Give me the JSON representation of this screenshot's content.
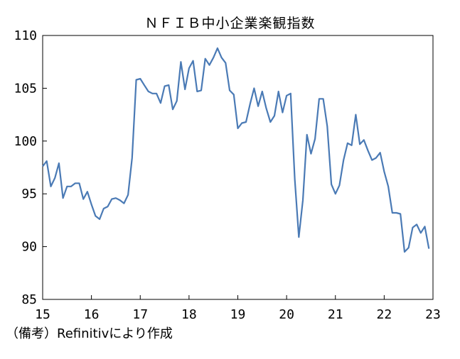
{
  "chart_data": {
    "type": "line",
    "title": "ＮＦＩＢ中小企業楽観指数",
    "note": "（備考）Refinitivにより作成",
    "xlabel": "",
    "ylabel": "",
    "ylim": [
      85,
      110
    ],
    "yticks": [
      "85",
      "90",
      "95",
      "100",
      "105",
      "110"
    ],
    "xlim": [
      15,
      23
    ],
    "xticks": [
      "15",
      "16",
      "17",
      "18",
      "19",
      "20",
      "21",
      "22",
      "23"
    ],
    "grid": false,
    "color": "#4a7ab5",
    "series": [
      {
        "name": "",
        "x": [
          15.0,
          15.083,
          15.167,
          15.25,
          15.333,
          15.417,
          15.5,
          15.583,
          15.667,
          15.75,
          15.833,
          15.917,
          16.0,
          16.083,
          16.167,
          16.25,
          16.333,
          16.417,
          16.5,
          16.583,
          16.667,
          16.75,
          16.833,
          16.917,
          17.0,
          17.083,
          17.167,
          17.25,
          17.333,
          17.417,
          17.5,
          17.583,
          17.667,
          17.75,
          17.833,
          17.917,
          18.0,
          18.083,
          18.167,
          18.25,
          18.333,
          18.417,
          18.5,
          18.583,
          18.667,
          18.75,
          18.833,
          18.917,
          19.0,
          19.083,
          19.167,
          19.25,
          19.333,
          19.417,
          19.5,
          19.583,
          19.667,
          19.75,
          19.833,
          19.917,
          20.0,
          20.083,
          20.167,
          20.25,
          20.333,
          20.417,
          20.5,
          20.583,
          20.667,
          20.75,
          20.833,
          20.917,
          21.0,
          21.083,
          21.167,
          21.25,
          21.333,
          21.417,
          21.5,
          21.583,
          21.667,
          21.75,
          21.833,
          21.917,
          22.0,
          22.083,
          22.167,
          22.25,
          22.333,
          22.417,
          22.5,
          22.583,
          22.667,
          22.75,
          22.833,
          22.917
        ],
        "values": [
          97.6,
          98.1,
          95.7,
          96.5,
          97.9,
          94.6,
          95.7,
          95.7,
          96.0,
          96.0,
          94.5,
          95.2,
          94.0,
          92.9,
          92.6,
          93.6,
          93.8,
          94.5,
          94.6,
          94.4,
          94.1,
          94.9,
          98.4,
          105.8,
          105.9,
          105.3,
          104.7,
          104.5,
          104.5,
          103.6,
          105.2,
          105.3,
          103.0,
          103.8,
          107.5,
          104.9,
          106.9,
          107.6,
          104.7,
          104.8,
          107.8,
          107.2,
          107.9,
          108.8,
          107.9,
          107.4,
          104.8,
          104.4,
          101.2,
          101.7,
          101.8,
          103.5,
          105.0,
          103.3,
          104.7,
          103.1,
          101.8,
          102.4,
          104.7,
          102.7,
          104.3,
          104.5,
          96.4,
          90.9,
          94.4,
          100.6,
          98.8,
          100.2,
          104.0,
          104.0,
          101.4,
          95.9,
          95.0,
          95.8,
          98.2,
          99.8,
          99.6,
          102.5,
          99.7,
          100.1,
          99.1,
          98.2,
          98.4,
          98.9,
          97.1,
          95.7,
          93.2,
          93.2,
          93.1,
          89.5,
          89.9,
          91.8,
          92.1,
          91.3,
          91.9,
          89.8
        ]
      }
    ]
  }
}
